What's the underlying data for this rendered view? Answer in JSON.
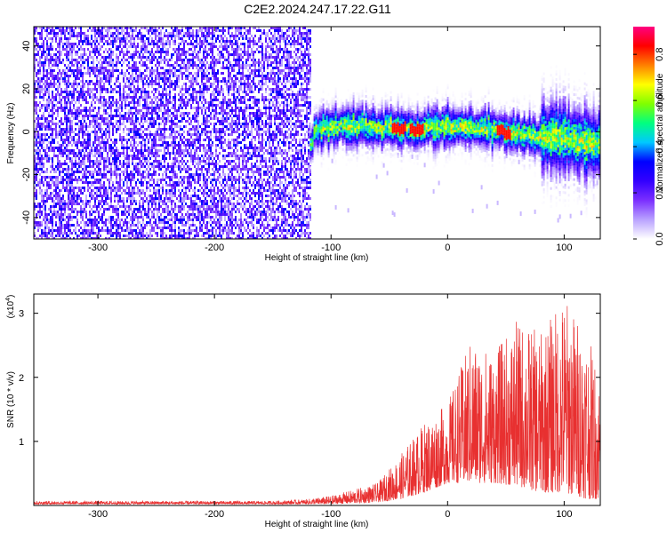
{
  "title": "C2E2.2024.247.17.22.G11",
  "chart_data": [
    {
      "type": "heatmap",
      "xlabel": "Height of straight line (km)",
      "ylabel": "Frequency (Hz)",
      "xlim": [
        -355,
        131
      ],
      "ylim": [
        -50,
        49
      ],
      "xticks": [
        -300,
        -200,
        -100,
        0,
        100
      ],
      "yticks": [
        -40,
        -20,
        0,
        20,
        40
      ],
      "colorbar": {
        "label": "Normalized spectral amplitude",
        "range": [
          0,
          0.92
        ],
        "ticks": [
          0.0,
          0.2,
          0.4,
          0.6,
          0.8
        ],
        "colors": [
          "#ffffff",
          "#b9a2ff",
          "#7b2fff",
          "#3300ff",
          "#0000ff",
          "#00c8ff",
          "#00ff80",
          "#80ff00",
          "#ffff00",
          "#ff8000",
          "#ff0000",
          "#ff0080"
        ]
      },
      "regions": [
        {
          "name": "noise",
          "x": [
            -355,
            -118
          ],
          "freq": [
            -50,
            49
          ],
          "amplitude": 0.05
        },
        {
          "name": "signal_band",
          "x": [
            -118,
            131
          ],
          "center_freq": [
            1,
            3,
            2,
            1,
            3,
            2,
            0,
            -3,
            -6
          ],
          "center_x": [
            -115,
            -75,
            -45,
            -25,
            0,
            25,
            50,
            90,
            130
          ],
          "half_width": 8,
          "peak_amplitude": 0.9,
          "peaks_x": [
            -43,
            -27,
            47
          ]
        }
      ]
    },
    {
      "type": "line",
      "xlabel": "Height of straight line (km)",
      "ylabel": "SNR (10 * v/v)",
      "y_multiplier": "(x10",
      "y_multiplier_exp": "4",
      "y_multiplier_close": ")",
      "xlim": [
        -355,
        131
      ],
      "ylim": [
        0,
        3.3
      ],
      "xticks": [
        -300,
        -200,
        -100,
        0,
        100
      ],
      "yticks": [
        1,
        2,
        3
      ],
      "color": "#e83030",
      "envelope": {
        "x": [
          -355,
          -150,
          -120,
          -100,
          -60,
          -40,
          -20,
          0,
          20,
          40,
          60,
          80,
          100,
          120,
          131
        ],
        "low": [
          0.02,
          0.02,
          0.02,
          0.02,
          0.05,
          0.1,
          0.2,
          0.35,
          0.35,
          0.35,
          0.3,
          0.2,
          0.2,
          0.1,
          0.1
        ],
        "high": [
          0.07,
          0.07,
          0.1,
          0.15,
          0.35,
          0.8,
          1.3,
          1.6,
          2.6,
          2.4,
          2.9,
          2.7,
          3.3,
          2.7,
          2.0
        ]
      }
    }
  ]
}
